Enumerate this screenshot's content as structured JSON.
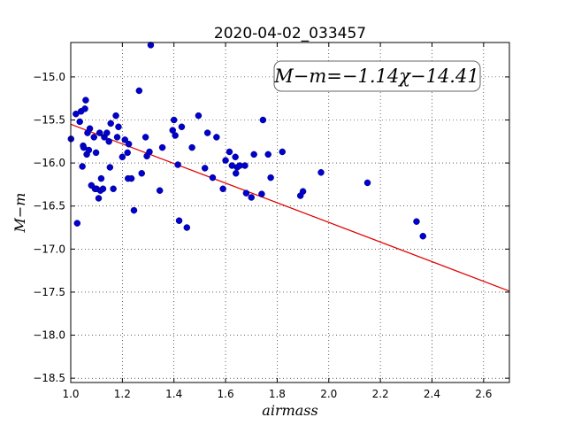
{
  "chart_data": {
    "type": "scatter",
    "title": "2020-04-02_033457",
    "xlabel": "airmass",
    "ylabel": "M−m",
    "xlim": [
      1.0,
      2.7
    ],
    "ylim": [
      -18.55,
      -14.6
    ],
    "y_inverted": false,
    "grid": true,
    "xticks": [
      1.0,
      1.2,
      1.4,
      1.6,
      1.8,
      2.0,
      2.2,
      2.4,
      2.6
    ],
    "xtick_labels": [
      "1.0",
      "1.2",
      "1.4",
      "1.6",
      "1.8",
      "2.0",
      "2.2",
      "2.4",
      "2.6"
    ],
    "yticks": [
      -15.0,
      -15.5,
      -16.0,
      -16.5,
      -17.0,
      -17.5,
      -18.0,
      -18.5
    ],
    "ytick_labels": [
      "−15.0",
      "−15.5",
      "−16.0",
      "−16.5",
      "−17.0",
      "−17.5",
      "−18.0",
      "−18.5"
    ],
    "annotation": "M−m=−1.14χ−14.41",
    "fit": {
      "slope": -1.14,
      "intercept": -14.41,
      "color": "#e00000"
    },
    "marker_color": "#0000cc",
    "points": [
      [
        1.001,
        -15.72
      ],
      [
        1.02,
        -15.43
      ],
      [
        1.025,
        -16.7
      ],
      [
        1.035,
        -15.52
      ],
      [
        1.04,
        -15.4
      ],
      [
        1.045,
        -16.04
      ],
      [
        1.048,
        -15.8
      ],
      [
        1.05,
        -15.82
      ],
      [
        1.055,
        -15.37
      ],
      [
        1.058,
        -15.27
      ],
      [
        1.062,
        -15.9
      ],
      [
        1.065,
        -15.65
      ],
      [
        1.07,
        -15.85
      ],
      [
        1.074,
        -15.6
      ],
      [
        1.08,
        -16.26
      ],
      [
        1.09,
        -15.7
      ],
      [
        1.094,
        -16.3
      ],
      [
        1.098,
        -15.88
      ],
      [
        1.1,
        -16.3
      ],
      [
        1.108,
        -16.41
      ],
      [
        1.112,
        -15.65
      ],
      [
        1.115,
        -16.32
      ],
      [
        1.118,
        -16.18
      ],
      [
        1.125,
        -16.3
      ],
      [
        1.13,
        -15.7
      ],
      [
        1.14,
        -15.65
      ],
      [
        1.148,
        -15.75
      ],
      [
        1.152,
        -16.05
      ],
      [
        1.155,
        -15.54
      ],
      [
        1.165,
        -16.3
      ],
      [
        1.175,
        -15.45
      ],
      [
        1.18,
        -15.7
      ],
      [
        1.185,
        -15.58
      ],
      [
        1.2,
        -15.93
      ],
      [
        1.21,
        -15.73
      ],
      [
        1.22,
        -15.88
      ],
      [
        1.225,
        -15.78
      ],
      [
        1.222,
        -16.18
      ],
      [
        1.235,
        -16.18
      ],
      [
        1.245,
        -16.55
      ],
      [
        1.265,
        -15.16
      ],
      [
        1.275,
        -16.12
      ],
      [
        1.29,
        -15.7
      ],
      [
        1.295,
        -15.92
      ],
      [
        1.305,
        -15.87
      ],
      [
        1.31,
        -14.63
      ],
      [
        1.345,
        -16.32
      ],
      [
        1.355,
        -15.82
      ],
      [
        1.395,
        -15.62
      ],
      [
        1.4,
        -15.5
      ],
      [
        1.405,
        -15.68
      ],
      [
        1.415,
        -16.02
      ],
      [
        1.42,
        -16.67
      ],
      [
        1.43,
        -15.58
      ],
      [
        1.45,
        -16.75
      ],
      [
        1.47,
        -15.82
      ],
      [
        1.495,
        -15.45
      ],
      [
        1.52,
        -16.06
      ],
      [
        1.53,
        -15.65
      ],
      [
        1.55,
        -16.17
      ],
      [
        1.565,
        -15.7
      ],
      [
        1.59,
        -16.3
      ],
      [
        1.6,
        -15.97
      ],
      [
        1.615,
        -15.87
      ],
      [
        1.625,
        -16.03
      ],
      [
        1.638,
        -15.93
      ],
      [
        1.64,
        -16.12
      ],
      [
        1.645,
        -16.05
      ],
      [
        1.655,
        -16.03
      ],
      [
        1.675,
        -16.03
      ],
      [
        1.68,
        -16.35
      ],
      [
        1.7,
        -16.4
      ],
      [
        1.71,
        -15.9
      ],
      [
        1.74,
        -16.36
      ],
      [
        1.745,
        -15.5
      ],
      [
        1.765,
        -15.9
      ],
      [
        1.775,
        -16.17
      ],
      [
        1.82,
        -15.87
      ],
      [
        1.89,
        -16.38
      ],
      [
        1.9,
        -16.33
      ],
      [
        1.97,
        -16.11
      ],
      [
        2.15,
        -16.23
      ],
      [
        2.34,
        -16.68
      ],
      [
        2.365,
        -16.85
      ]
    ]
  }
}
